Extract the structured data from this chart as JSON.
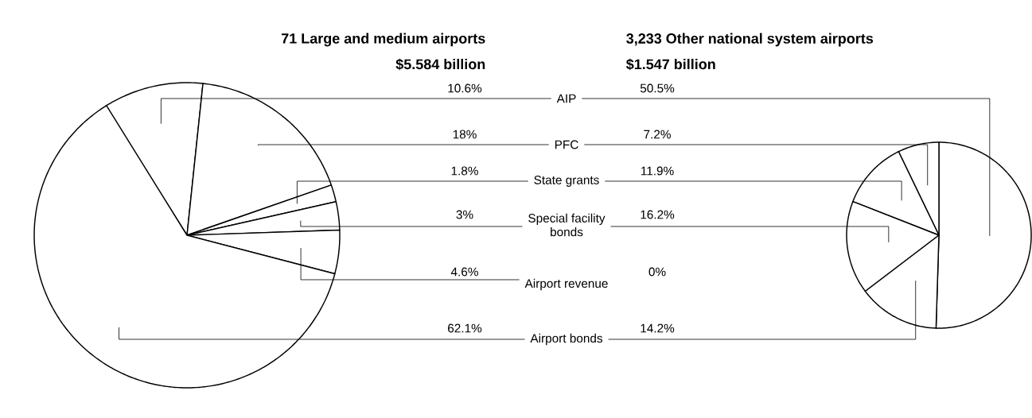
{
  "chart_data": [
    {
      "type": "pie",
      "title": "71 Large and medium airports",
      "subtitle": "$5.584 billion",
      "categories": [
        "AIP",
        "PFC",
        "State grants",
        "Special facility bonds",
        "Airport revenue",
        "Airport bonds"
      ],
      "values": [
        10.6,
        18,
        1.8,
        3,
        4.6,
        62.1
      ],
      "value_labels": [
        "10.6%",
        "18%",
        "1.8%",
        "3%",
        "4.6%",
        "62.1%"
      ],
      "colors": [
        "#ffffff",
        "#ffffff",
        "#ffffff",
        "#ffffff",
        "#ffffff",
        "#ffffff"
      ]
    },
    {
      "type": "pie",
      "title": "3,233 Other national system airports",
      "subtitle": "$1.547 billion",
      "categories": [
        null,
        null,
        null,
        null,
        null,
        null
      ],
      "values": [
        50.5,
        7.2,
        11.9,
        16.2,
        0,
        14.2
      ],
      "value_labels": [
        "50.5%",
        "7.2%",
        "11.9%",
        "16.2%",
        "0%",
        "14.2%"
      ],
      "colors": [
        "#ffffff",
        "#ffffff",
        "#ffffff",
        "#ffffff",
        "#ffffff",
        "#ffffff"
      ]
    }
  ]
}
